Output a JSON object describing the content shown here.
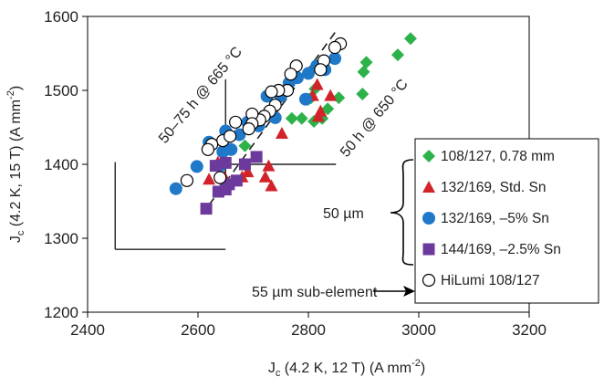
{
  "chart_data": {
    "type": "scatter",
    "xlabel": "J_c (4.2 K, 12 T) (A mm^-2)",
    "ylabel": "J_c (4.2 K, 15 T) (A mm^-2)",
    "xlim": [
      2400,
      3200
    ],
    "ylim": [
      1200,
      1600
    ],
    "x_ticks": [
      2400,
      2600,
      2800,
      3000,
      3200
    ],
    "y_ticks": [
      1200,
      1300,
      1400,
      1500,
      1600
    ],
    "grid": false,
    "legend_position": "right",
    "series": [
      {
        "name": "108/127, 0.78 mm",
        "marker": "diamond",
        "color": "#2db24a",
        "points": [
          [
            2985,
            1570
          ],
          [
            2962,
            1548
          ],
          [
            2905,
            1538
          ],
          [
            2900,
            1525
          ],
          [
            2898,
            1495
          ],
          [
            2855,
            1490
          ],
          [
            2812,
            1502
          ],
          [
            2805,
            1490
          ],
          [
            2800,
            1488
          ],
          [
            2788,
            1462
          ],
          [
            2810,
            1458
          ],
          [
            2825,
            1462
          ],
          [
            2835,
            1475
          ],
          [
            2770,
            1462
          ],
          [
            2685,
            1425
          ],
          [
            2660,
            1420
          ]
        ]
      },
      {
        "name": "132/169, Std. Sn",
        "marker": "triangle",
        "color": "#d2232a",
        "points": [
          [
            2840,
            1493
          ],
          [
            2816,
            1508
          ],
          [
            2808,
            1493
          ],
          [
            2822,
            1472
          ],
          [
            2818,
            1465
          ],
          [
            2752,
            1442
          ],
          [
            2728,
            1398
          ],
          [
            2722,
            1383
          ],
          [
            2733,
            1371
          ],
          [
            2690,
            1390
          ],
          [
            2680,
            1383
          ],
          [
            2648,
            1383
          ],
          [
            2636,
            1403
          ],
          [
            2620,
            1380
          ]
        ]
      },
      {
        "name": "132/169, –5% Sn",
        "marker": "circle",
        "color": "#1f78c8",
        "points": [
          [
            2560,
            1367
          ],
          [
            2598,
            1397
          ],
          [
            2645,
            1417
          ],
          [
            2650,
            1445
          ],
          [
            2675,
            1440
          ],
          [
            2690,
            1457
          ],
          [
            2710,
            1452
          ],
          [
            2740,
            1463
          ],
          [
            2725,
            1492
          ],
          [
            2750,
            1492
          ],
          [
            2765,
            1510
          ],
          [
            2780,
            1517
          ],
          [
            2800,
            1523
          ],
          [
            2815,
            1533
          ],
          [
            2830,
            1528
          ],
          [
            2848,
            1543
          ],
          [
            2795,
            1488
          ],
          [
            2640,
            1398
          ],
          [
            2620,
            1430
          ],
          [
            2660,
            1420
          ]
        ]
      },
      {
        "name": "144/169, –2.5% Sn",
        "marker": "square",
        "color": "#6b3a9c",
        "points": [
          [
            2615,
            1340
          ],
          [
            2637,
            1363
          ],
          [
            2650,
            1366
          ],
          [
            2656,
            1373
          ],
          [
            2670,
            1378
          ],
          [
            2685,
            1400
          ],
          [
            2706,
            1410
          ],
          [
            2650,
            1402
          ],
          [
            2632,
            1398
          ]
        ]
      },
      {
        "name": "HiLumi 108/127",
        "marker": "open-circle",
        "color": "#ffffff",
        "points": [
          [
            2858,
            1563
          ],
          [
            2848,
            1558
          ],
          [
            2828,
            1540
          ],
          [
            2822,
            1528
          ],
          [
            2778,
            1533
          ],
          [
            2768,
            1522
          ],
          [
            2762,
            1500
          ],
          [
            2746,
            1500
          ],
          [
            2733,
            1498
          ],
          [
            2740,
            1480
          ],
          [
            2730,
            1472
          ],
          [
            2720,
            1465
          ],
          [
            2712,
            1460
          ],
          [
            2698,
            1468
          ],
          [
            2698,
            1455
          ],
          [
            2692,
            1448
          ],
          [
            2668,
            1457
          ],
          [
            2645,
            1432
          ],
          [
            2625,
            1427
          ],
          [
            2618,
            1420
          ],
          [
            2658,
            1438
          ],
          [
            2580,
            1378
          ],
          [
            2640,
            1382
          ]
        ]
      }
    ],
    "annotations": {
      "line_upper_label": "50–75 h @ 665 °C",
      "line_lower_label": "50 h @ 650 °C",
      "brace_label": "50 µm",
      "arrow_label": "55 µm sub-element"
    }
  },
  "axes": {
    "x_title_main": "J",
    "x_title_sub": "c",
    "x_title_rest": " (4.2 K, 12 T) (A mm",
    "x_title_sup": "-2",
    "x_title_end": ")",
    "y_title_main": "J",
    "y_title_sub": "c",
    "y_title_rest": " (4.2 K, 15 T) (A mm",
    "y_title_sup": "-2",
    "y_title_end": ")",
    "x_tick_labels": [
      "2400",
      "2600",
      "2800",
      "3000",
      "3200"
    ],
    "y_tick_labels": [
      "1200",
      "1300",
      "1400",
      "1500",
      "1600"
    ]
  }
}
